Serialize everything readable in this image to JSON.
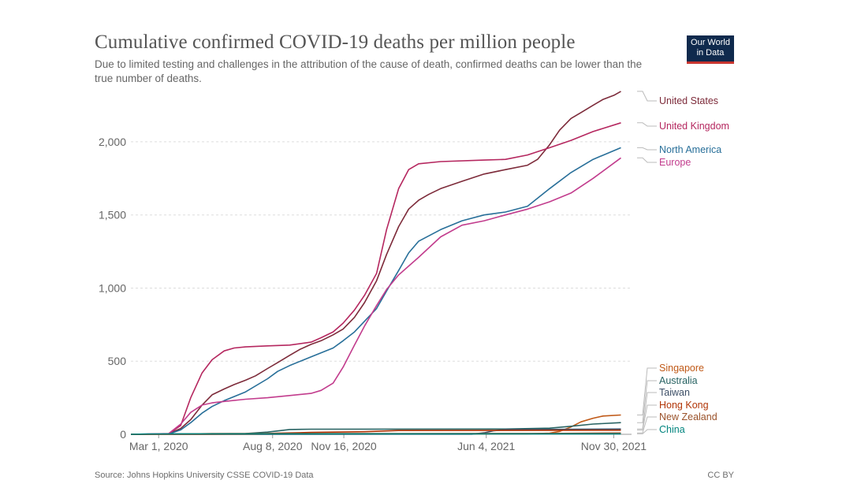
{
  "header": {
    "title": "Cumulative confirmed COVID-19 deaths per million people",
    "subtitle": "Due to limited testing and challenges in the attribution of the cause of death, confirmed deaths can be lower than the true number of deaths.",
    "logo_line1": "Our World",
    "logo_line2": "in Data"
  },
  "footer": {
    "source": "Source: Johns Hopkins University CSSE COVID-19 Data",
    "license": "CC BY"
  },
  "chart_data": {
    "type": "line",
    "title": "Cumulative confirmed COVID-19 deaths per million people",
    "ylabel": "",
    "xlabel": "",
    "ylim": [
      0,
      2350
    ],
    "xlim": [
      "2020-01-22",
      "2021-12-25"
    ],
    "yticks": [
      0,
      500,
      1000,
      1500,
      2000
    ],
    "ytick_labels": [
      "0",
      "500",
      "1,000",
      "1,500",
      "2,000"
    ],
    "xticks": [
      "2020-03-01",
      "2020-08-08",
      "2020-11-16",
      "2021-06-04",
      "2021-11-30"
    ],
    "xtick_labels": [
      "Mar 1, 2020",
      "Aug 8, 2020",
      "Nov 16, 2020",
      "Jun 4, 2021",
      "Nov 30, 2021"
    ],
    "grid": true,
    "legend": "right (labels at line ends)",
    "series": [
      {
        "name": "United States",
        "color": "#7d2b3a",
        "points": [
          [
            "2020-01-22",
            0
          ],
          [
            "2020-03-15",
            3
          ],
          [
            "2020-04-01",
            40
          ],
          [
            "2020-04-15",
            100
          ],
          [
            "2020-05-01",
            200
          ],
          [
            "2020-05-15",
            270
          ],
          [
            "2020-06-01",
            310
          ],
          [
            "2020-06-15",
            340
          ],
          [
            "2020-07-01",
            370
          ],
          [
            "2020-07-15",
            400
          ],
          [
            "2020-08-01",
            450
          ],
          [
            "2020-08-15",
            490
          ],
          [
            "2020-09-01",
            540
          ],
          [
            "2020-09-15",
            580
          ],
          [
            "2020-10-01",
            615
          ],
          [
            "2020-10-15",
            640
          ],
          [
            "2020-11-01",
            680
          ],
          [
            "2020-11-15",
            720
          ],
          [
            "2020-12-01",
            800
          ],
          [
            "2020-12-15",
            900
          ],
          [
            "2021-01-01",
            1050
          ],
          [
            "2021-01-15",
            1230
          ],
          [
            "2021-02-01",
            1420
          ],
          [
            "2021-02-15",
            1540
          ],
          [
            "2021-03-01",
            1600
          ],
          [
            "2021-03-15",
            1640
          ],
          [
            "2021-04-01",
            1680
          ],
          [
            "2021-05-01",
            1730
          ],
          [
            "2021-06-01",
            1780
          ],
          [
            "2021-07-01",
            1810
          ],
          [
            "2021-08-01",
            1840
          ],
          [
            "2021-08-15",
            1880
          ],
          [
            "2021-09-01",
            1980
          ],
          [
            "2021-09-15",
            2080
          ],
          [
            "2021-10-01",
            2160
          ],
          [
            "2021-10-15",
            2200
          ],
          [
            "2021-11-01",
            2250
          ],
          [
            "2021-11-15",
            2290
          ],
          [
            "2021-12-01",
            2320
          ],
          [
            "2021-12-10",
            2345
          ]
        ]
      },
      {
        "name": "United Kingdom",
        "color": "#b5275f",
        "points": [
          [
            "2020-01-22",
            0
          ],
          [
            "2020-03-15",
            3
          ],
          [
            "2020-04-01",
            60
          ],
          [
            "2020-04-15",
            250
          ],
          [
            "2020-05-01",
            420
          ],
          [
            "2020-05-15",
            510
          ],
          [
            "2020-06-01",
            570
          ],
          [
            "2020-06-15",
            590
          ],
          [
            "2020-07-01",
            598
          ],
          [
            "2020-08-01",
            605
          ],
          [
            "2020-09-01",
            610
          ],
          [
            "2020-10-01",
            630
          ],
          [
            "2020-10-15",
            660
          ],
          [
            "2020-11-01",
            700
          ],
          [
            "2020-11-15",
            760
          ],
          [
            "2020-12-01",
            850
          ],
          [
            "2020-12-15",
            950
          ],
          [
            "2021-01-01",
            1100
          ],
          [
            "2021-01-15",
            1400
          ],
          [
            "2021-02-01",
            1680
          ],
          [
            "2021-02-15",
            1810
          ],
          [
            "2021-03-01",
            1850
          ],
          [
            "2021-04-01",
            1865
          ],
          [
            "2021-06-01",
            1875
          ],
          [
            "2021-07-01",
            1880
          ],
          [
            "2021-08-01",
            1910
          ],
          [
            "2021-09-01",
            1960
          ],
          [
            "2021-10-01",
            2010
          ],
          [
            "2021-11-01",
            2070
          ],
          [
            "2021-12-10",
            2130
          ]
        ]
      },
      {
        "name": "North America",
        "color": "#286f99",
        "points": [
          [
            "2020-01-22",
            0
          ],
          [
            "2020-03-15",
            2
          ],
          [
            "2020-04-01",
            30
          ],
          [
            "2020-04-15",
            80
          ],
          [
            "2020-05-01",
            145
          ],
          [
            "2020-05-15",
            190
          ],
          [
            "2020-06-01",
            230
          ],
          [
            "2020-07-01",
            290
          ],
          [
            "2020-08-01",
            380
          ],
          [
            "2020-08-15",
            430
          ],
          [
            "2020-09-01",
            470
          ],
          [
            "2020-10-01",
            530
          ],
          [
            "2020-11-01",
            590
          ],
          [
            "2020-11-15",
            640
          ],
          [
            "2020-12-01",
            700
          ],
          [
            "2021-01-01",
            860
          ],
          [
            "2021-01-15",
            980
          ],
          [
            "2021-02-01",
            1120
          ],
          [
            "2021-02-15",
            1240
          ],
          [
            "2021-03-01",
            1320
          ],
          [
            "2021-04-01",
            1400
          ],
          [
            "2021-05-01",
            1460
          ],
          [
            "2021-06-01",
            1500
          ],
          [
            "2021-07-01",
            1520
          ],
          [
            "2021-08-01",
            1560
          ],
          [
            "2021-09-01",
            1680
          ],
          [
            "2021-10-01",
            1790
          ],
          [
            "2021-11-01",
            1880
          ],
          [
            "2021-12-10",
            1960
          ]
        ]
      },
      {
        "name": "Europe",
        "color": "#c23c8d",
        "points": [
          [
            "2020-01-22",
            0
          ],
          [
            "2020-03-15",
            5
          ],
          [
            "2020-04-01",
            70
          ],
          [
            "2020-04-15",
            150
          ],
          [
            "2020-05-01",
            200
          ],
          [
            "2020-05-15",
            215
          ],
          [
            "2020-06-01",
            225
          ],
          [
            "2020-07-01",
            240
          ],
          [
            "2020-08-01",
            250
          ],
          [
            "2020-09-01",
            265
          ],
          [
            "2020-10-01",
            280
          ],
          [
            "2020-10-15",
            300
          ],
          [
            "2020-11-01",
            350
          ],
          [
            "2020-11-15",
            460
          ],
          [
            "2020-12-01",
            610
          ],
          [
            "2020-12-15",
            740
          ],
          [
            "2021-01-01",
            880
          ],
          [
            "2021-01-15",
            990
          ],
          [
            "2021-02-01",
            1090
          ],
          [
            "2021-03-01",
            1210
          ],
          [
            "2021-04-01",
            1350
          ],
          [
            "2021-05-01",
            1430
          ],
          [
            "2021-06-01",
            1460
          ],
          [
            "2021-07-01",
            1500
          ],
          [
            "2021-08-01",
            1540
          ],
          [
            "2021-09-01",
            1590
          ],
          [
            "2021-10-01",
            1650
          ],
          [
            "2021-11-01",
            1750
          ],
          [
            "2021-12-10",
            1890
          ]
        ]
      },
      {
        "name": "Singapore",
        "color": "#c05917",
        "points": [
          [
            "2020-01-22",
            0
          ],
          [
            "2021-08-01",
            3
          ],
          [
            "2021-09-01",
            8
          ],
          [
            "2021-09-15",
            20
          ],
          [
            "2021-10-01",
            50
          ],
          [
            "2021-10-15",
            85
          ],
          [
            "2021-11-01",
            110
          ],
          [
            "2021-11-15",
            125
          ],
          [
            "2021-12-10",
            132
          ]
        ]
      },
      {
        "name": "Australia",
        "color": "#286363",
        "points": [
          [
            "2020-01-22",
            0
          ],
          [
            "2020-04-01",
            2
          ],
          [
            "2020-07-01",
            5
          ],
          [
            "2020-08-01",
            15
          ],
          [
            "2020-09-01",
            33
          ],
          [
            "2020-10-01",
            35
          ],
          [
            "2021-07-01",
            36
          ],
          [
            "2021-09-01",
            42
          ],
          [
            "2021-10-01",
            55
          ],
          [
            "2021-11-01",
            70
          ],
          [
            "2021-12-10",
            80
          ]
        ]
      },
      {
        "name": "Taiwan",
        "color": "#3c4e66",
        "points": [
          [
            "2020-01-22",
            0
          ],
          [
            "2021-05-15",
            1
          ],
          [
            "2021-06-01",
            10
          ],
          [
            "2021-06-15",
            25
          ],
          [
            "2021-07-01",
            32
          ],
          [
            "2021-12-10",
            36
          ]
        ]
      },
      {
        "name": "Hong Kong",
        "color": "#b13507",
        "points": [
          [
            "2020-01-22",
            0
          ],
          [
            "2020-07-15",
            2
          ],
          [
            "2020-08-15",
            8
          ],
          [
            "2020-10-01",
            13
          ],
          [
            "2020-12-15",
            18
          ],
          [
            "2021-02-01",
            26
          ],
          [
            "2021-12-10",
            28
          ]
        ]
      },
      {
        "name": "New Zealand",
        "color": "#9a5129",
        "points": [
          [
            "2020-01-22",
            0
          ],
          [
            "2020-04-15",
            3
          ],
          [
            "2020-05-15",
            5
          ],
          [
            "2021-09-01",
            6
          ],
          [
            "2021-12-10",
            9
          ]
        ]
      },
      {
        "name": "China",
        "color": "#00847e",
        "points": [
          [
            "2020-01-22",
            0
          ],
          [
            "2020-02-15",
            2
          ],
          [
            "2020-04-01",
            3
          ],
          [
            "2021-12-10",
            3
          ]
        ]
      }
    ]
  }
}
